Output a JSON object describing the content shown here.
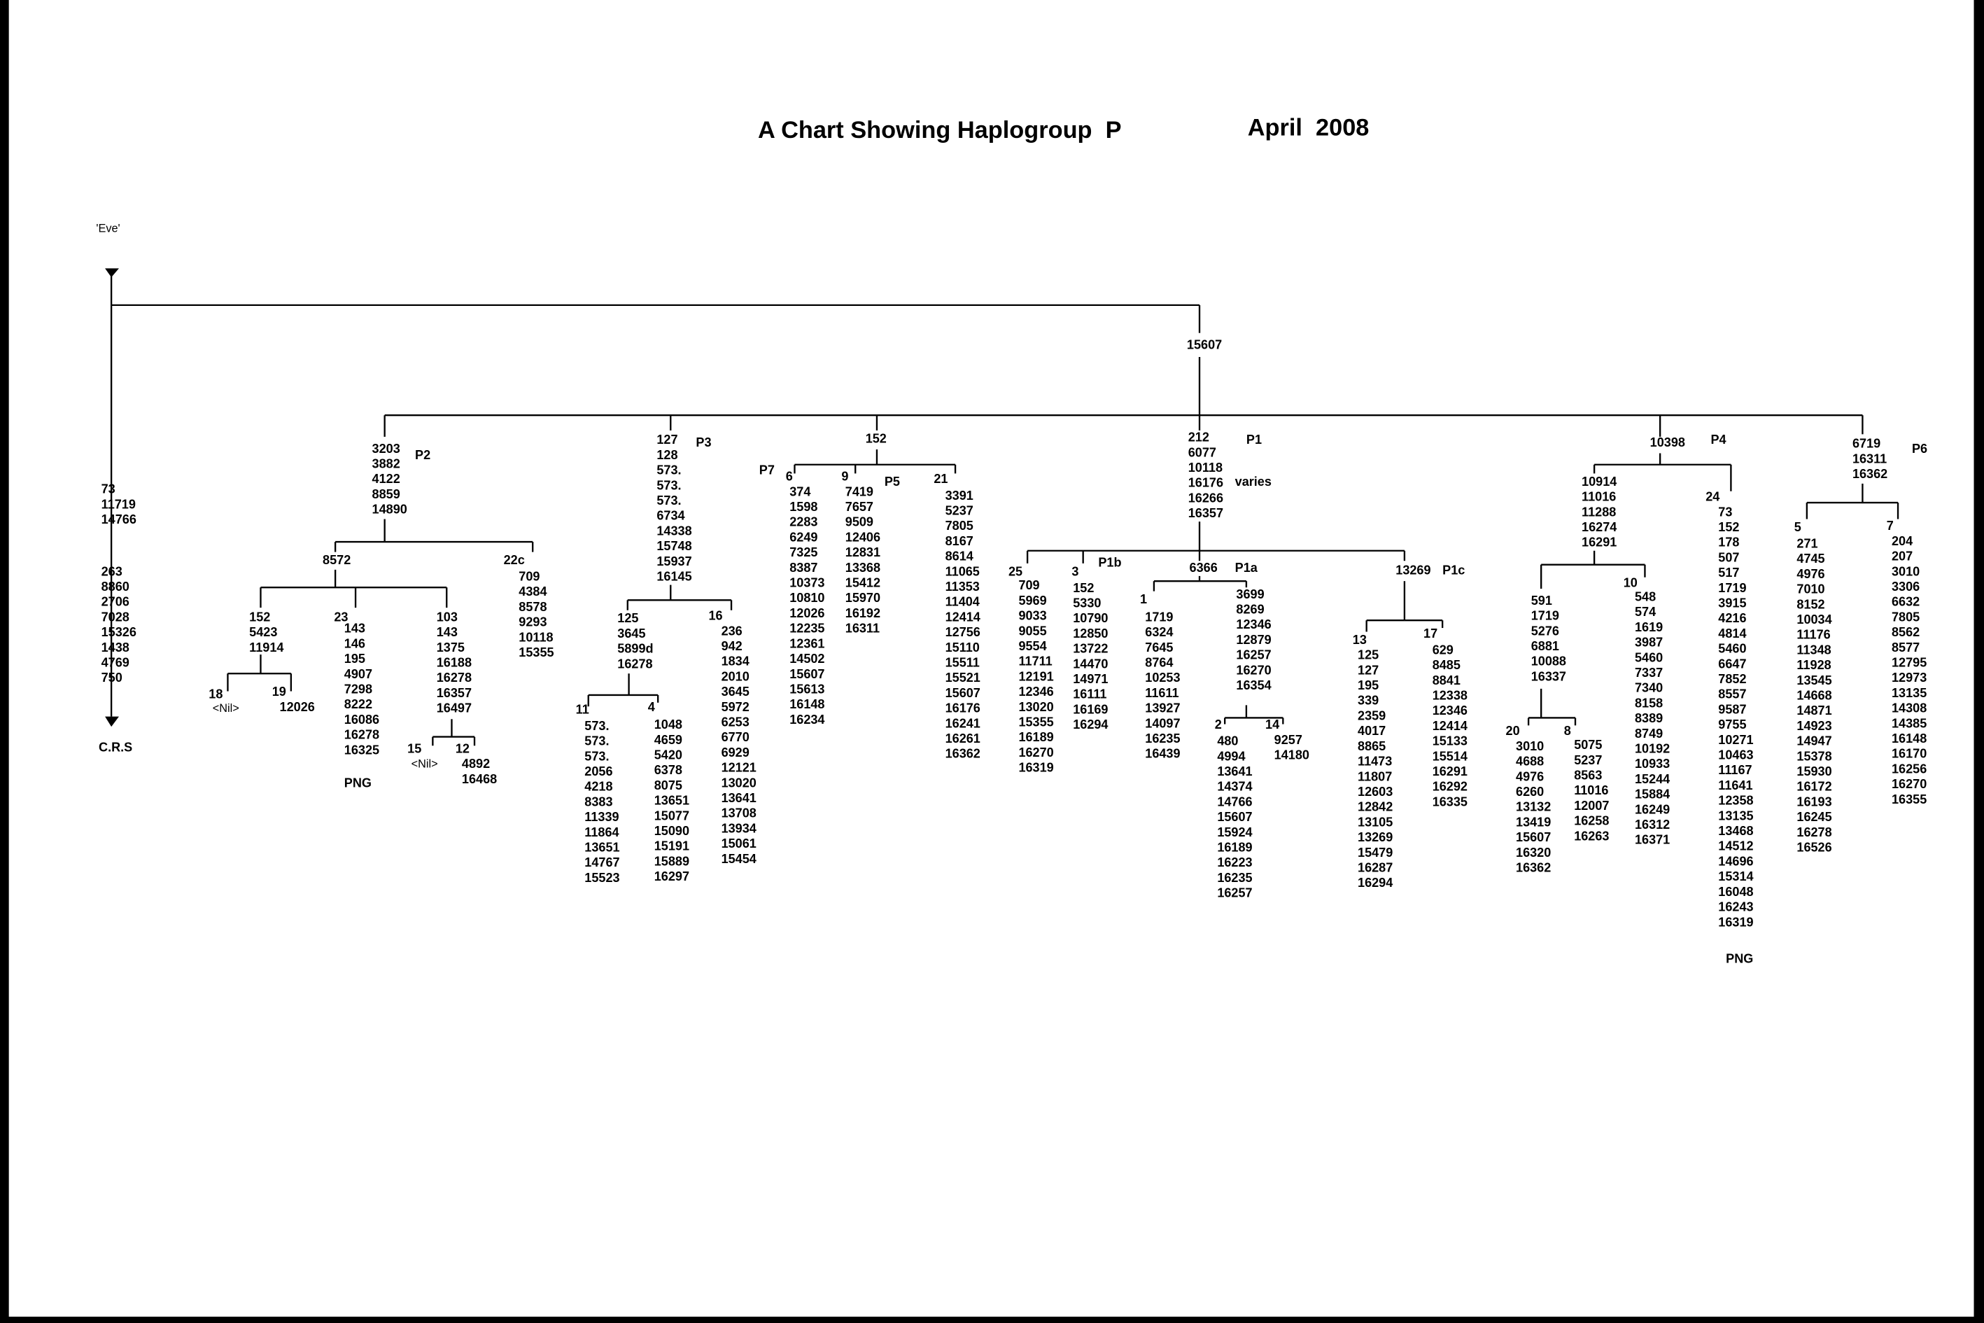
{
  "title": "A Chart Showing Haplogroup  P",
  "date": "April  2008",
  "blocks": [
    {
      "lines": [
        "73",
        "11719",
        "14766"
      ]
    },
    {
      "lines": [
        "263",
        "8860",
        "2706",
        "7028",
        "15326",
        "1438",
        "4769",
        "750"
      ]
    },
    {
      "lines": [
        "3203",
        "3882",
        "4122",
        "8859",
        "14890"
      ]
    },
    {
      "lines": [
        "709",
        "4384",
        "8578",
        "9293",
        "10118",
        "15355"
      ]
    },
    {
      "lines": [
        "152",
        "5423",
        "11914"
      ]
    },
    {
      "lines": [
        "143",
        "146",
        "195",
        "4907",
        "7298",
        "8222",
        "16086",
        "16278",
        "16325"
      ]
    },
    {
      "lines": [
        "103",
        "143",
        "1375",
        "16188",
        "16278",
        "16357",
        "16497"
      ]
    },
    {
      "lines": [
        "4892",
        "16468"
      ]
    },
    {
      "lines": [
        "127",
        "128",
        "573.",
        "573.",
        "573.",
        "6734",
        "14338",
        "15748",
        "15937",
        "16145"
      ]
    },
    {
      "lines": [
        "125",
        "3645",
        "5899d",
        "16278"
      ]
    },
    {
      "lines": [
        "236",
        "942",
        "1834",
        "2010",
        "3645",
        "5972",
        "6253",
        "6770",
        "6929",
        "12121",
        "13020",
        "13641",
        "13708",
        "13934",
        "15061",
        "15454"
      ]
    },
    {
      "lines": [
        "573.",
        "573.",
        "573.",
        "2056",
        "4218",
        "8383",
        "11339",
        "11864",
        "13651",
        "14767",
        "15523"
      ]
    },
    {
      "lines": [
        "1048",
        "4659",
        "5420",
        "6378",
        "8075",
        "13651",
        "15077",
        "15090",
        "15191",
        "15889",
        "16297"
      ]
    },
    {
      "lines": [
        "374",
        "1598",
        "2283",
        "6249",
        "7325",
        "8387",
        "10373",
        "10810",
        "12026",
        "12235",
        "12361",
        "14502",
        "15607",
        "15613",
        "16148",
        "16234"
      ]
    },
    {
      "lines": [
        "7419",
        "7657",
        "9509",
        "12406",
        "12831",
        "13368",
        "15412",
        "15970",
        "16192",
        "16311"
      ]
    },
    {
      "lines": [
        "3391",
        "5237",
        "7805",
        "8167",
        "8614",
        "11065",
        "11353",
        "11404",
        "12414",
        "12756",
        "15110",
        "15511",
        "15521",
        "15607",
        "16176",
        "16241",
        "16261",
        "16362"
      ]
    },
    {
      "lines": [
        "212",
        "6077",
        "10118",
        "16176",
        "16266",
        "16357"
      ]
    },
    {
      "lines": [
        "709",
        "5969",
        "9033",
        "9055",
        "9554",
        "11711",
        "12191",
        "12346",
        "13020",
        "15355",
        "16189",
        "16270",
        "16319"
      ]
    },
    {
      "lines": [
        "152",
        "5330",
        "10790",
        "12850",
        "13722",
        "14470",
        "14971",
        "16111",
        "16169",
        "16294"
      ]
    },
    {
      "lines": [
        "1719",
        "6324",
        "7645",
        "8764",
        "10253",
        "11611",
        "13927",
        "14097",
        "16235",
        "16439"
      ]
    },
    {
      "lines": [
        "3699",
        "8269",
        "12346",
        "12879",
        "16257",
        "16270",
        "16354"
      ]
    },
    {
      "lines": [
        "480",
        "4994",
        "13641",
        "14374",
        "14766",
        "15607",
        "15924",
        "16189",
        "16223",
        "16235",
        "16257"
      ]
    },
    {
      "lines": [
        "9257",
        "14180"
      ]
    },
    {
      "lines": [
        "125",
        "127",
        "195",
        "339",
        "2359",
        "4017",
        "8865",
        "11473",
        "11807",
        "12603",
        "12842",
        "13105",
        "13269",
        "15479",
        "16287",
        "16294"
      ]
    },
    {
      "lines": [
        "629",
        "8485",
        "8841",
        "12338",
        "12346",
        "12414",
        "15133",
        "15514",
        "16291",
        "16292",
        "16335"
      ]
    },
    {
      "lines": [
        "10914",
        "11016",
        "11288",
        "16274",
        "16291"
      ]
    },
    {
      "lines": [
        "591",
        "1719",
        "5276",
        "6881",
        "10088",
        "16337"
      ]
    },
    {
      "lines": [
        "548",
        "574",
        "1619",
        "3987",
        "5460",
        "7337",
        "7340",
        "8158",
        "8389",
        "8749",
        "10192",
        "10933",
        "15244",
        "15884",
        "16249",
        "16312",
        "16371"
      ]
    },
    {
      "lines": [
        "3010",
        "4688",
        "4976",
        "6260",
        "13132",
        "13419",
        "15607",
        "16320",
        "16362"
      ]
    },
    {
      "lines": [
        "5075",
        "5237",
        "8563",
        "11016",
        "12007",
        "16258",
        "16263"
      ]
    },
    {
      "lines": [
        "73",
        "152",
        "178",
        "507",
        "517",
        "1719",
        "3915",
        "4216",
        "4814",
        "5460",
        "6647",
        "7852",
        "8557",
        "9587",
        "9755",
        "10271",
        "10463",
        "11167",
        "11641",
        "12358",
        "13135",
        "13468",
        "14512",
        "14696",
        "15314",
        "16048",
        "16243",
        "16319"
      ]
    },
    {
      "lines": [
        "6719",
        "16311",
        "16362"
      ]
    },
    {
      "lines": [
        "271",
        "4745",
        "4976",
        "7010",
        "8152",
        "10034",
        "11176",
        "11348",
        "11928",
        "13545",
        "14668",
        "14871",
        "14923",
        "14947",
        "15378",
        "15930",
        "16172",
        "16193",
        "16245",
        "16278",
        "16526"
      ]
    },
    {
      "lines": [
        "204",
        "207",
        "3010",
        "3306",
        "6632",
        "7805",
        "8562",
        "8577",
        "12795",
        "12973",
        "13135",
        "14308",
        "14385",
        "16148",
        "16170",
        "16256",
        "16270",
        "16355"
      ]
    }
  ],
  "labels": [
    "15607",
    "P2",
    "8572",
    "22c",
    "23",
    "18",
    "<Nil>",
    "19",
    "12026",
    "15",
    "<Nil>",
    "12",
    "PNG",
    "P3",
    "16",
    "11",
    "4",
    "152",
    "P7",
    "6",
    "9",
    "P5",
    "21",
    "P1",
    "varies",
    "25",
    "3",
    "P1b",
    "6366",
    "P1a",
    "1",
    "2",
    "14",
    "13269",
    "P1c",
    "13",
    "17",
    "10398",
    "P4",
    "10",
    "20",
    "8",
    "24",
    "PNG",
    "P6",
    "5",
    "7",
    "'Eve'",
    "C.R.S"
  ]
}
